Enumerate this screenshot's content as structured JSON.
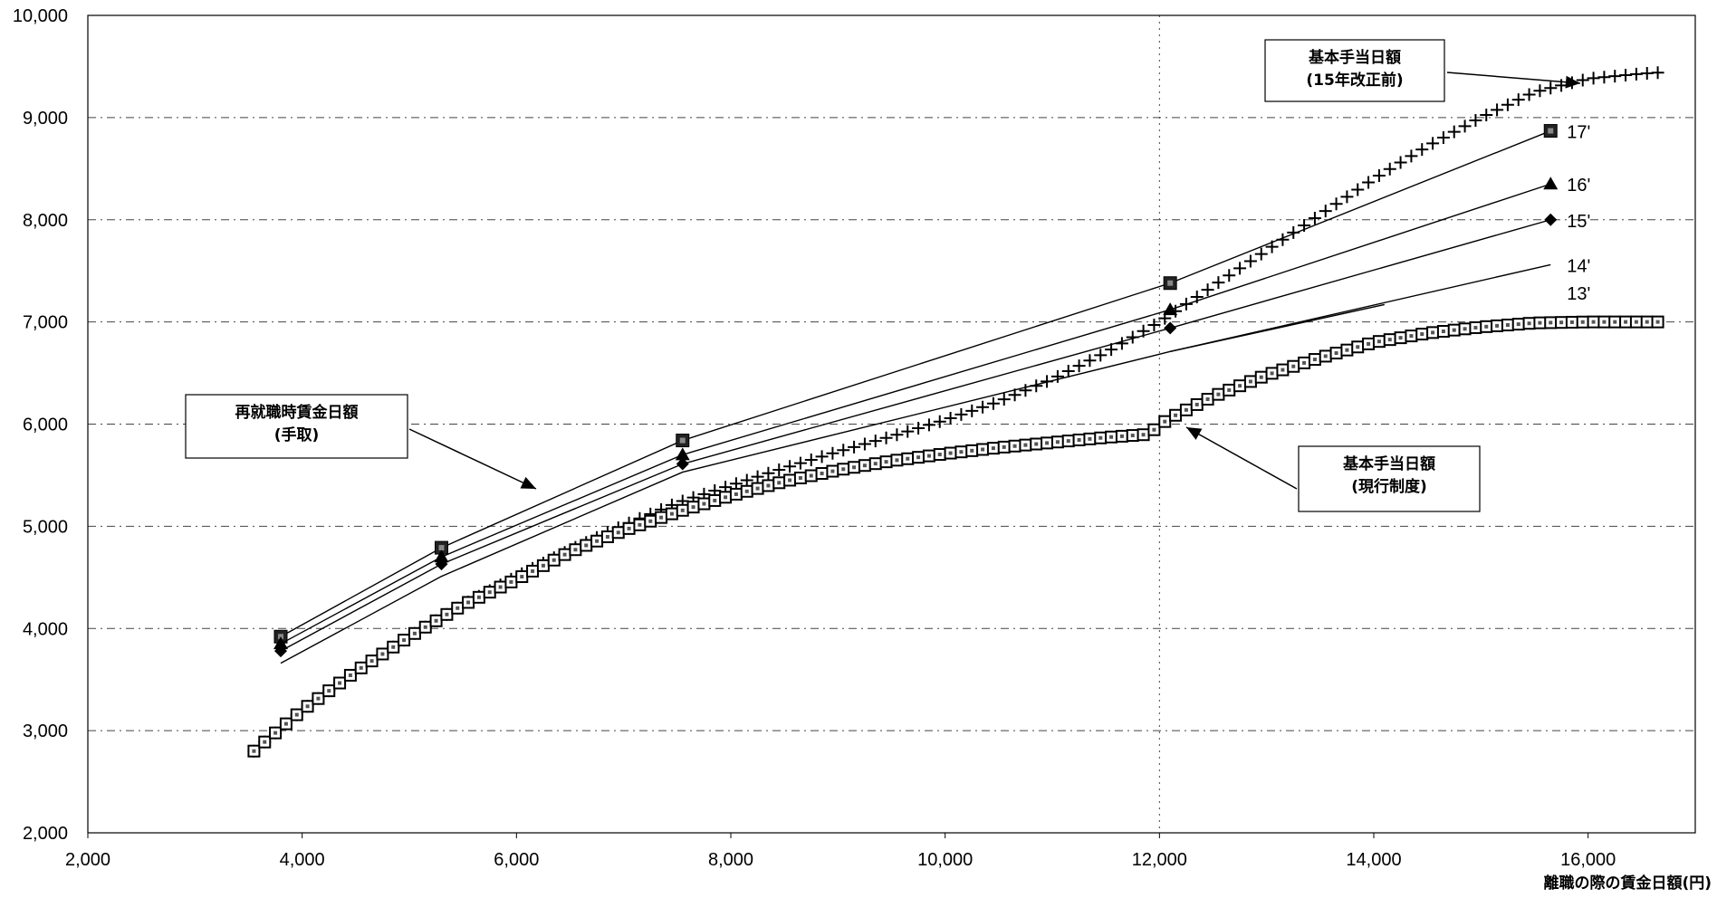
{
  "chart_data": {
    "type": "line",
    "xlabel": "離職の際の賃金日額(円)",
    "ylabel": "",
    "xlim": [
      2000,
      17000
    ],
    "ylim": [
      2000,
      10000
    ],
    "xticks": [
      "2,000",
      "4,000",
      "6,000",
      "8,000",
      "10,000",
      "12,000",
      "14,000",
      "16,000"
    ],
    "yticks": [
      "2,000",
      "3,000",
      "4,000",
      "5,000",
      "6,000",
      "7,000",
      "8,000",
      "9,000",
      "10,000"
    ],
    "grid": "dash-dot horizontal lines, dotted vertical line at 12,000",
    "annotations": [
      {
        "text_lines": [
          "基本手当日額",
          "(15年改正前)"
        ],
        "points_to": "pre-reform series"
      },
      {
        "text_lines": [
          "再就職時賃金日額",
          "(手取)"
        ],
        "points_to": "reemployment wage lines"
      },
      {
        "text_lines": [
          "基本手当日額",
          "(現行制度)"
        ],
        "points_to": "current system series"
      }
    ],
    "series": [
      {
        "name": "17'",
        "marker": "square",
        "x": [
          3800,
          5300,
          7550,
          12100,
          15650
        ],
        "y": [
          3920,
          4790,
          5840,
          7380,
          8870
        ]
      },
      {
        "name": "16'",
        "marker": "triangle",
        "x": [
          3800,
          5300,
          7550,
          12100,
          15650
        ],
        "y": [
          3850,
          4700,
          5700,
          7120,
          8350
        ]
      },
      {
        "name": "15'",
        "marker": "diamond",
        "x": [
          3800,
          5300,
          7550,
          12100,
          15650
        ],
        "y": [
          3780,
          4630,
          5610,
          6940,
          8000
        ]
      },
      {
        "name": "14'",
        "marker": "faint",
        "x": [
          3800,
          5300,
          7550,
          12100,
          15650
        ],
        "y": [
          3660,
          4510,
          5530,
          6710,
          7560
        ]
      },
      {
        "name": "13'",
        "marker": "faint",
        "x": [
          12100,
          14100
        ],
        "y": [
          6710,
          7170
        ]
      },
      {
        "name": "",
        "marker": "plus",
        "x": [
          3550,
          4000,
          4500,
          5000,
          5500,
          6000,
          6500,
          7000,
          7500,
          8000,
          8500,
          9000,
          9500,
          10000,
          10500,
          11000,
          11500,
          12000,
          12500,
          13000,
          13500,
          14000,
          14500,
          15000,
          15500,
          16000,
          16500,
          16650
        ],
        "y": [
          2800,
          3200,
          3580,
          3920,
          4230,
          4510,
          4770,
          5010,
          5230,
          5400,
          5570,
          5730,
          5880,
          6040,
          6220,
          6440,
          6700,
          7000,
          7350,
          7700,
          8050,
          8400,
          8720,
          9000,
          9250,
          9380,
          9430,
          9440
        ]
      },
      {
        "name": "",
        "marker": "open-square",
        "x": [
          3550,
          4000,
          4500,
          5000,
          5500,
          6000,
          6500,
          7000,
          7500,
          8000,
          8500,
          9000,
          9500,
          10000,
          10500,
          11000,
          11500,
          11900,
          12000,
          12100,
          12500,
          13000,
          13500,
          14000,
          14500,
          15000,
          15500,
          16000,
          16500,
          16650
        ],
        "y": [
          2800,
          3200,
          3580,
          3920,
          4230,
          4480,
          4750,
          4960,
          5140,
          5300,
          5440,
          5550,
          5640,
          5710,
          5770,
          5820,
          5870,
          5900,
          5990,
          6060,
          6270,
          6480,
          6650,
          6800,
          6890,
          6950,
          6990,
          7000,
          7000,
          7000
        ]
      }
    ]
  }
}
